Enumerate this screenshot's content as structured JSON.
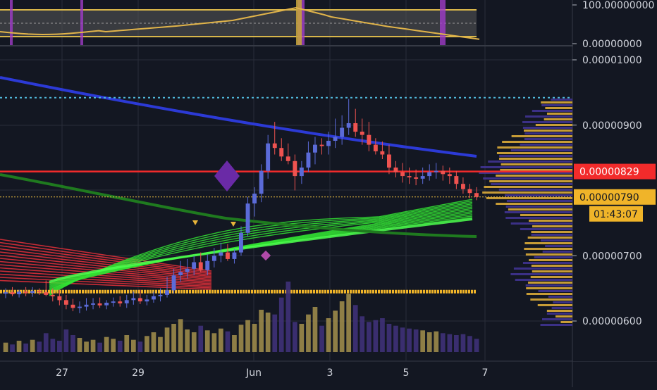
{
  "oscillator_panel": {
    "tick_labels": [
      "100.00000000",
      "0.00000000"
    ],
    "ticks": [
      100,
      0
    ]
  },
  "price_axis": {
    "tick_labels": [
      "0.00001000",
      "0.00000900",
      "0.00000700",
      "0.00000600"
    ],
    "ticks": [
      1e-05,
      9e-06,
      7e-06,
      6e-06
    ],
    "range": [
      5.5e-06,
      1.02e-05
    ]
  },
  "time_axis": {
    "labels": [
      "27",
      "29",
      "Jun",
      "3",
      "5",
      "7"
    ]
  },
  "price_badges": {
    "resistance_price": "0.00000829",
    "last_price": "0.00000790",
    "countdown": "01:43:07"
  },
  "colors": {
    "background": "#131722",
    "grid": "#2a2e39",
    "candle_up": "#5b6bd8",
    "candle_down": "#ef5350",
    "resistance_line": "#f22b2b",
    "ma_blue": "#2c3ad6",
    "ma_green": "#1f7a1f",
    "ribbon_green": "#33e233",
    "ribbon_red": "#e8303a",
    "volume_up": "#9c8a4a",
    "volume_down": "#3f3178",
    "volume_profile_gold": "#e7b43a",
    "volume_profile_violet": "#4a3aa8",
    "dotted_level": "#4fb6d8",
    "last_price_line": "#f0c040",
    "gold_level": "#f0b429",
    "oscillator_band": "#5a5a5a",
    "oscillator_line": "#e1b44a",
    "oscillator_highlight": "#a03cc8"
  },
  "chart_data": {
    "type": "candlestick",
    "x": [
      "May 26 00:00",
      "May 26 04:00",
      "May 26 08:00",
      "May 26 12:00",
      "May 26 16:00",
      "May 26 20:00",
      "May 27 00:00",
      "May 27 04:00",
      "May 27 08:00",
      "May 27 12:00",
      "May 27 16:00",
      "May 27 20:00",
      "May 28 00:00",
      "May 28 04:00",
      "May 28 08:00",
      "May 28 12:00",
      "May 28 16:00",
      "May 28 20:00",
      "May 29 00:00",
      "May 29 04:00",
      "May 29 08:00",
      "May 29 12:00",
      "May 29 16:00",
      "May 29 20:00",
      "May 30 00:00",
      "May 30 04:00",
      "May 30 08:00",
      "May 30 12:00",
      "May 30 16:00",
      "May 30 20:00",
      "May 31 00:00",
      "May 31 04:00",
      "May 31 08:00",
      "May 31 12:00",
      "May 31 16:00",
      "May 31 20:00",
      "Jun 1 00:00",
      "Jun 1 04:00",
      "Jun 1 08:00",
      "Jun 1 12:00",
      "Jun 1 16:00",
      "Jun 1 20:00",
      "Jun 2 00:00",
      "Jun 2 04:00",
      "Jun 2 08:00",
      "Jun 2 12:00",
      "Jun 2 16:00",
      "Jun 2 20:00",
      "Jun 3 00:00",
      "Jun 3 04:00",
      "Jun 3 08:00",
      "Jun 3 12:00",
      "Jun 3 16:00",
      "Jun 3 20:00",
      "Jun 4 00:00",
      "Jun 4 04:00",
      "Jun 4 08:00",
      "Jun 4 12:00",
      "Jun 4 16:00",
      "Jun 4 20:00",
      "Jun 5 00:00",
      "Jun 5 04:00",
      "Jun 5 08:00",
      "Jun 5 12:00",
      "Jun 5 16:00",
      "Jun 5 20:00",
      "Jun 6 00:00",
      "Jun 6 04:00",
      "Jun 6 08:00",
      "Jun 6 12:00",
      "Jun 6 16:00"
    ],
    "series": [
      {
        "open": [
          6.42,
          6.44,
          6.41,
          6.45,
          6.43,
          6.46,
          6.44,
          6.4,
          6.38,
          6.32,
          6.25,
          6.2,
          6.22,
          6.25,
          6.27,
          6.24,
          6.28,
          6.3,
          6.27,
          6.32,
          6.35,
          6.3,
          6.33,
          6.38,
          6.4,
          6.47,
          6.7,
          6.75,
          6.8,
          6.9,
          6.78,
          6.92,
          7.0,
          7.05,
          6.95,
          7.05,
          7.35,
          7.8,
          7.95,
          8.3,
          8.72,
          8.65,
          8.52,
          8.45,
          8.22,
          8.35,
          8.58,
          8.7,
          8.68,
          8.76,
          8.82,
          8.96,
          9.03,
          8.9,
          8.85,
          8.7,
          8.6,
          8.55,
          8.35,
          8.28,
          8.22,
          8.2,
          8.18,
          8.22,
          8.28,
          8.3,
          8.25,
          8.22,
          8.1,
          8.02,
          7.96
        ],
        "high": [
          6.5,
          6.52,
          6.48,
          6.52,
          6.52,
          6.5,
          6.62,
          6.5,
          6.48,
          6.4,
          6.34,
          6.3,
          6.35,
          6.35,
          6.36,
          6.32,
          6.36,
          6.38,
          6.4,
          6.45,
          6.48,
          6.4,
          6.45,
          6.5,
          6.68,
          6.8,
          6.92,
          6.95,
          7.0,
          7.05,
          7.02,
          7.12,
          7.2,
          7.18,
          7.1,
          7.45,
          7.9,
          8.05,
          8.4,
          8.85,
          9.05,
          8.8,
          8.72,
          8.55,
          8.45,
          8.75,
          8.82,
          8.8,
          8.9,
          9.1,
          9.15,
          9.4,
          9.25,
          9.1,
          9.05,
          8.8,
          8.75,
          8.7,
          8.45,
          8.42,
          8.35,
          8.32,
          8.35,
          8.4,
          8.42,
          8.38,
          8.35,
          8.3,
          8.2,
          8.1,
          8.05
        ],
        "low": [
          6.35,
          6.38,
          6.36,
          6.38,
          6.37,
          6.4,
          6.38,
          6.3,
          6.24,
          6.18,
          6.15,
          6.12,
          6.16,
          6.18,
          6.2,
          6.18,
          6.22,
          6.22,
          6.2,
          6.25,
          6.26,
          6.24,
          6.28,
          6.3,
          6.36,
          6.42,
          6.6,
          6.65,
          6.7,
          6.75,
          6.7,
          6.82,
          6.9,
          6.92,
          6.88,
          7.0,
          7.3,
          7.6,
          7.82,
          8.18,
          8.55,
          8.45,
          8.4,
          8.0,
          8.1,
          8.28,
          8.4,
          8.55,
          8.55,
          8.65,
          8.7,
          8.85,
          8.82,
          8.7,
          8.6,
          8.55,
          8.48,
          8.25,
          8.2,
          8.12,
          8.1,
          8.08,
          8.1,
          8.15,
          8.18,
          8.15,
          8.1,
          8.02,
          7.95,
          7.88,
          7.85
        ],
        "close": [
          6.44,
          6.41,
          6.45,
          6.43,
          6.46,
          6.44,
          6.4,
          6.38,
          6.32,
          6.25,
          6.2,
          6.22,
          6.25,
          6.27,
          6.24,
          6.28,
          6.3,
          6.27,
          6.32,
          6.35,
          6.3,
          6.33,
          6.38,
          6.4,
          6.47,
          6.7,
          6.75,
          6.8,
          6.9,
          6.78,
          6.92,
          7.0,
          7.05,
          6.95,
          7.05,
          7.35,
          7.8,
          7.95,
          8.3,
          8.72,
          8.65,
          8.52,
          8.45,
          8.22,
          8.35,
          8.58,
          8.7,
          8.68,
          8.76,
          8.82,
          8.96,
          9.03,
          8.9,
          8.85,
          8.7,
          8.6,
          8.55,
          8.35,
          8.28,
          8.22,
          8.2,
          8.18,
          8.22,
          8.28,
          8.3,
          8.25,
          8.22,
          8.1,
          8.02,
          7.96,
          7.9
        ]
      },
      {
        "name": "",
        "type": "bar",
        "volume": [
          1.0,
          0.8,
          1.2,
          0.9,
          1.3,
          1.1,
          2.0,
          1.4,
          1.2,
          2.4,
          1.8,
          1.5,
          1.1,
          1.3,
          1.0,
          1.6,
          1.4,
          1.2,
          1.8,
          1.3,
          1.1,
          1.7,
          2.1,
          1.6,
          2.6,
          3.0,
          3.5,
          2.4,
          2.1,
          2.8,
          2.3,
          2.0,
          2.5,
          2.2,
          1.8,
          2.9,
          3.4,
          3.0,
          4.5,
          4.2,
          4.0,
          5.8,
          7.5,
          3.2,
          3.0,
          4.0,
          4.8,
          2.8,
          3.6,
          4.4,
          5.4,
          6.2,
          5.0,
          3.8,
          3.2,
          3.4,
          3.6,
          3.0,
          2.8,
          2.6,
          2.5,
          2.4,
          2.3,
          2.1,
          2.2,
          2.0,
          1.9,
          1.8,
          1.9,
          1.7,
          1.4
        ]
      }
    ],
    "levels": {
      "resistance": 8.29,
      "last_price": 7.9,
      "dotted_top": 9.42,
      "gold_support": 6.45
    },
    "ylim": [
      5.5,
      10.2
    ],
    "y_unit": "1e-6"
  }
}
